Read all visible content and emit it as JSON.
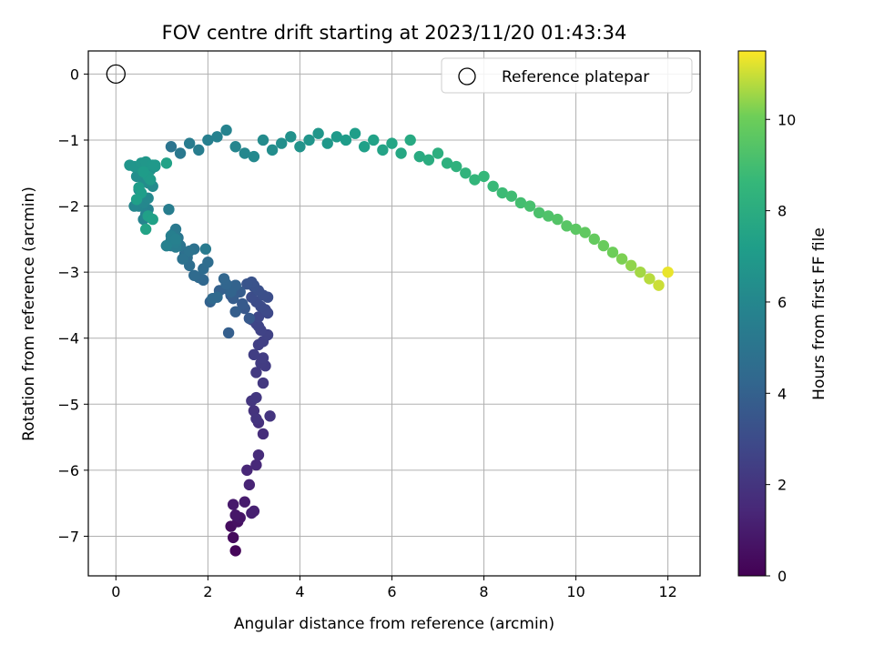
{
  "chart_data": {
    "type": "scatter",
    "title": "FOV centre drift starting at 2023/11/20 01:43:34",
    "xlabel": "Angular distance from reference (arcmin)",
    "ylabel": "Rotation from reference (arcmin)",
    "xlim": [
      -0.6,
      12.7
    ],
    "ylim": [
      -7.6,
      0.35
    ],
    "xticks": [
      0,
      2,
      4,
      6,
      8,
      10,
      12
    ],
    "yticks": [
      0,
      -1,
      -2,
      -3,
      -4,
      -5,
      -6,
      -7
    ],
    "grid": true,
    "legend": {
      "placement": "upper right",
      "entries": [
        "Reference platepar"
      ]
    },
    "reference": {
      "x": 0,
      "y": 0,
      "label": "Reference platepar"
    },
    "colorbar": {
      "label": "Hours from first FF file",
      "min": 0,
      "max": 11.5,
      "ticks": [
        0,
        2,
        4,
        6,
        8,
        10
      ],
      "colormap": "viridis"
    },
    "series": [
      {
        "x": [
          2.6,
          2.55,
          2.5,
          2.65,
          2.7,
          2.6,
          2.55,
          2.8,
          2.95,
          3.0,
          2.9,
          2.85,
          3.05,
          3.1,
          3.2,
          3.1,
          3.0,
          3.05,
          3.35,
          2.95,
          3.05,
          3.2,
          3.05,
          3.25,
          3.15,
          3.2,
          3.0,
          3.1,
          3.2,
          3.3,
          3.15,
          3.1,
          3.05,
          2.95,
          3.1,
          3.3,
          3.25,
          3.15,
          3.05,
          2.95,
          3.3,
          3.2,
          3.1,
          3.0,
          3.0,
          2.95,
          2.85,
          2.6,
          2.55,
          2.8,
          2.9,
          2.75,
          2.5,
          2.7,
          2.55,
          2.6,
          2.45,
          2.4,
          2.25,
          2.05,
          2.6,
          2.5,
          2.4,
          2.35,
          1.9,
          1.8,
          2.1,
          2.2,
          1.7,
          1.9,
          2.0,
          1.6,
          1.55,
          1.5,
          1.7,
          1.45,
          1.6,
          1.4,
          1.3,
          1.35,
          1.2,
          1.2,
          1.25,
          1.3,
          1.95,
          1.15,
          1.3,
          1.1,
          1.15,
          1.3,
          1.2,
          1.3,
          1.1,
          0.7,
          0.65,
          0.6,
          0.5,
          0.4,
          0.6,
          0.7,
          0.55,
          0.5,
          0.8,
          0.7,
          0.6,
          0.45,
          0.55,
          0.65,
          0.75,
          0.85,
          0.5,
          0.6,
          0.4,
          0.3,
          0.55,
          0.65,
          0.8,
          0.85,
          0.7,
          0.75,
          0.6,
          0.5,
          0.55,
          0.45,
          0.7,
          0.8,
          1.1,
          0.65
        ],
        "y": [
          -7.22,
          -7.02,
          -6.85,
          -6.78,
          -6.72,
          -6.68,
          -6.52,
          -6.48,
          -6.65,
          -6.62,
          -6.22,
          -6.0,
          -5.92,
          -5.77,
          -5.45,
          -5.28,
          -5.1,
          -5.22,
          -5.18,
          -4.95,
          -4.9,
          -4.68,
          -4.52,
          -4.42,
          -4.38,
          -4.3,
          -4.25,
          -4.1,
          -4.05,
          -3.95,
          -3.88,
          -3.82,
          -3.78,
          -3.72,
          -3.68,
          -3.62,
          -3.57,
          -3.52,
          -3.45,
          -3.38,
          -3.38,
          -3.35,
          -3.28,
          -3.22,
          -3.2,
          -3.15,
          -3.18,
          -3.2,
          -3.27,
          -3.55,
          -3.7,
          -3.48,
          -3.35,
          -3.3,
          -3.4,
          -3.6,
          -3.92,
          -3.25,
          -3.28,
          -3.45,
          -3.2,
          -3.3,
          -3.18,
          -3.1,
          -3.12,
          -3.08,
          -3.4,
          -3.38,
          -3.05,
          -2.95,
          -2.85,
          -2.9,
          -2.78,
          -2.72,
          -2.65,
          -2.8,
          -2.68,
          -2.6,
          -2.55,
          -2.48,
          -2.52,
          -2.6,
          -2.42,
          -2.35,
          -2.65,
          -2.58,
          -2.62,
          -2.6,
          -2.05,
          -2.55,
          -2.45,
          -2.5,
          -2.6,
          -2.05,
          -2.12,
          -2.2,
          -2.0,
          -2.0,
          -1.95,
          -1.88,
          -1.82,
          -1.75,
          -1.7,
          -1.65,
          -1.6,
          -1.55,
          -1.5,
          -1.48,
          -1.45,
          -1.4,
          -1.42,
          -1.38,
          -1.4,
          -1.38,
          -1.35,
          -1.33,
          -1.38,
          -1.38,
          -1.55,
          -1.6,
          -1.48,
          -1.72,
          -1.8,
          -1.9,
          -2.15,
          -2.2,
          -1.35,
          -2.35
        ],
        "color_values": [
          0.2,
          0.35,
          0.45,
          0.55,
          0.7,
          0.8,
          0.9,
          1.0,
          1.1,
          1.15,
          1.3,
          1.4,
          1.5,
          1.6,
          1.7,
          1.8,
          1.9,
          1.95,
          2.0,
          2.05,
          2.1,
          2.15,
          2.2,
          2.25,
          2.3,
          2.35,
          2.4,
          2.45,
          2.5,
          2.55,
          2.6,
          2.65,
          2.7,
          2.75,
          2.8,
          2.85,
          2.9,
          2.95,
          3.0,
          3.05,
          3.1,
          3.15,
          3.2,
          3.25,
          3.3,
          3.35,
          3.4,
          3.45,
          3.5,
          3.55,
          3.6,
          3.65,
          3.7,
          3.75,
          3.8,
          3.85,
          3.9,
          3.95,
          4.0,
          4.05,
          4.1,
          4.15,
          4.2,
          4.25,
          4.3,
          4.35,
          4.4,
          4.45,
          4.5,
          4.55,
          4.6,
          4.65,
          4.7,
          4.75,
          4.8,
          4.85,
          4.9,
          4.95,
          5.0,
          5.05,
          5.1,
          5.15,
          5.2,
          5.25,
          5.3,
          5.35,
          5.4,
          5.45,
          5.5,
          5.55,
          5.6,
          5.65,
          5.7,
          5.75,
          5.8,
          5.85,
          5.9,
          5.95,
          6.0,
          6.05,
          6.1,
          6.15,
          6.2,
          6.25,
          6.3,
          6.35,
          6.4,
          6.45,
          6.5,
          6.55,
          6.6,
          6.65,
          6.7,
          6.75,
          6.8,
          6.85,
          6.9,
          6.95,
          7.0,
          7.05,
          7.1,
          7.15,
          7.2,
          7.25,
          7.3,
          7.35,
          7.4,
          7.45
        ]
      },
      {
        "x": [
          1.2,
          1.4,
          1.6,
          1.8,
          2.0,
          2.2,
          2.4,
          2.6,
          2.8,
          3.0,
          3.2,
          3.4,
          3.6,
          3.8,
          4.0,
          4.2,
          4.4,
          4.6,
          4.8,
          5.0,
          5.2,
          5.4,
          5.6,
          5.8,
          6.0,
          6.2,
          6.4,
          6.6,
          6.8,
          7.0,
          7.2,
          7.4,
          7.6,
          7.8,
          8.0,
          8.2,
          8.4,
          8.6,
          8.8,
          9.0,
          9.2,
          9.4,
          9.6,
          9.8,
          10.0,
          10.2,
          10.4,
          10.6,
          10.8,
          11.0,
          11.2,
          11.4,
          11.6,
          11.8,
          12.0
        ],
        "y": [
          -1.1,
          -1.2,
          -1.05,
          -1.15,
          -1.0,
          -0.95,
          -0.85,
          -1.1,
          -1.2,
          -1.25,
          -1.0,
          -1.15,
          -1.05,
          -0.95,
          -1.1,
          -1.0,
          -0.9,
          -1.05,
          -0.95,
          -1.0,
          -0.9,
          -1.1,
          -1.0,
          -1.15,
          -1.05,
          -1.2,
          -1.0,
          -1.25,
          -1.3,
          -1.2,
          -1.35,
          -1.4,
          -1.5,
          -1.6,
          -1.55,
          -1.7,
          -1.8,
          -1.85,
          -1.95,
          -2.0,
          -2.1,
          -2.15,
          -2.2,
          -2.3,
          -2.35,
          -2.4,
          -2.5,
          -2.6,
          -2.7,
          -2.8,
          -2.9,
          -3.0,
          -3.1,
          -3.2,
          -3.0
        ],
        "color_values": [
          5.0,
          5.2,
          5.4,
          5.5,
          5.6,
          5.7,
          5.8,
          5.9,
          6.0,
          6.1,
          6.2,
          6.3,
          6.4,
          6.5,
          6.6,
          6.7,
          6.8,
          6.9,
          7.0,
          7.1,
          7.2,
          7.3,
          7.4,
          7.5,
          7.6,
          7.7,
          7.8,
          7.9,
          8.0,
          8.1,
          8.2,
          8.3,
          8.4,
          8.5,
          8.6,
          8.7,
          8.8,
          8.9,
          9.0,
          9.1,
          9.2,
          9.3,
          9.4,
          9.5,
          9.6,
          9.7,
          9.8,
          9.9,
          10.0,
          10.2,
          10.4,
          10.6,
          10.8,
          11.0,
          11.3
        ]
      }
    ]
  }
}
